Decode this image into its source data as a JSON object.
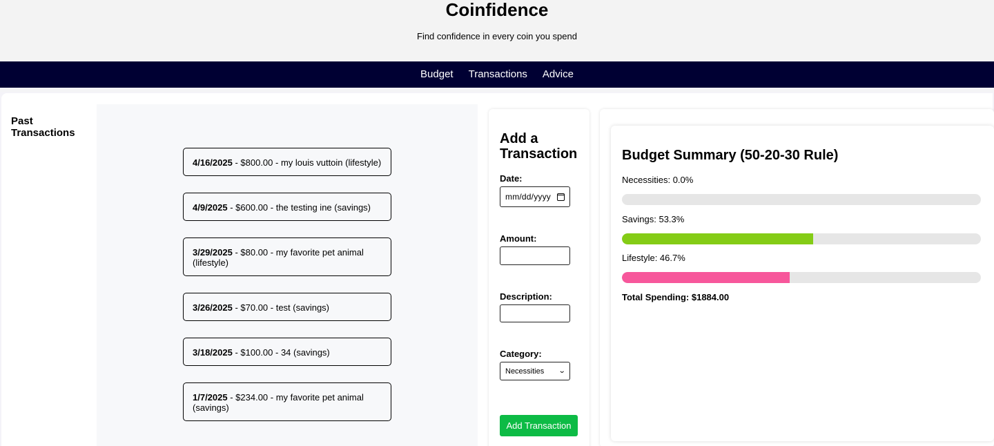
{
  "app": {
    "title": "Coinfidence",
    "tagline": "Find confidence in every coin you spend"
  },
  "nav": {
    "links": [
      "Budget",
      "Transactions",
      "Advice"
    ]
  },
  "sidebar": {
    "title": "Past Transactions"
  },
  "transactions": [
    {
      "date": "4/16/2025",
      "details": " - $800.00 - my louis vuttoin (lifestyle)"
    },
    {
      "date": "4/9/2025",
      "details": " - $600.00 - the testing ine (savings)"
    },
    {
      "date": "3/29/2025",
      "details": " - $80.00 - my favorite pet animal (lifestyle)"
    },
    {
      "date": "3/26/2025",
      "details": " - $70.00 - test (savings)"
    },
    {
      "date": "3/18/2025",
      "details": " - $100.00 - 34 (savings)"
    },
    {
      "date": "1/7/2025",
      "details": " - $234.00 - my favorite pet animal (savings)"
    }
  ],
  "form": {
    "title": "Add a Transaction",
    "date_label": "Date:",
    "date_placeholder": "mm/dd/yyyy",
    "amount_label": "Amount:",
    "amount_value": "",
    "description_label": "Description:",
    "description_value": "",
    "category_label": "Category:",
    "category_selected": "Necessities",
    "submit_label": "Add Transaction"
  },
  "summary": {
    "title": "Budget Summary (50-20-30 Rule)",
    "bars": [
      {
        "label": "Necessities: 0.0%",
        "percent": 0.0,
        "color": "#e6e6e6"
      },
      {
        "label": "Savings: 53.3%",
        "percent": 53.3,
        "color": "#84cc16"
      },
      {
        "label": "Lifestyle: 46.7%",
        "percent": 46.7,
        "color": "#f7579b"
      }
    ],
    "total": "Total Spending: $1884.00"
  }
}
